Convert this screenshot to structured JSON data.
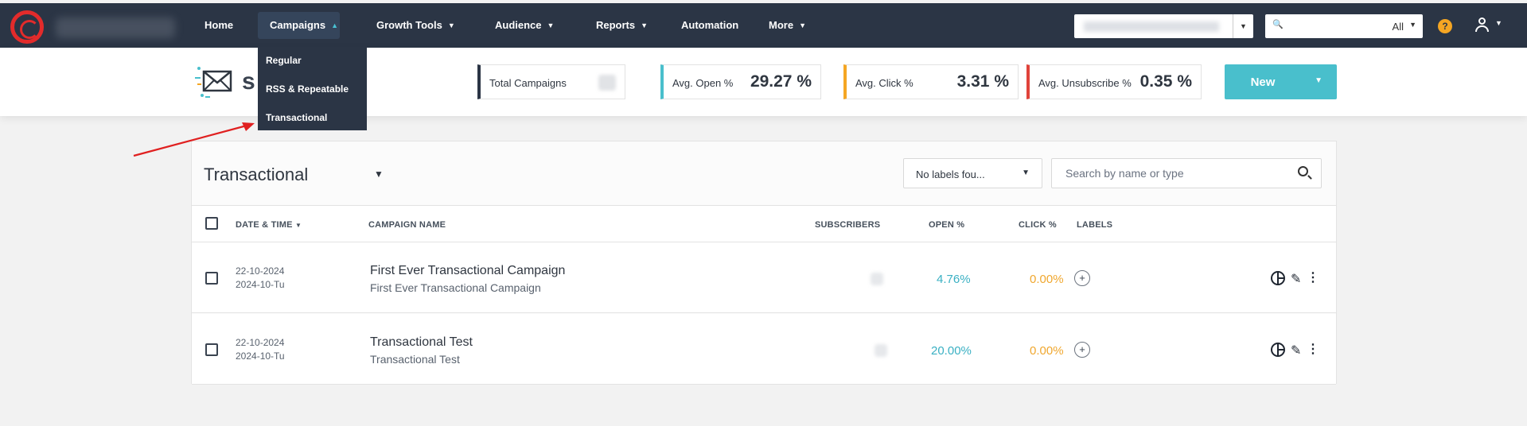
{
  "nav": {
    "items": [
      {
        "label": "Home"
      },
      {
        "label": "Campaigns"
      },
      {
        "label": "Growth Tools"
      },
      {
        "label": "Audience"
      },
      {
        "label": "Reports"
      },
      {
        "label": "Automation"
      },
      {
        "label": "More"
      }
    ],
    "active": "Campaigns",
    "search_scope": "All",
    "help_label": "?"
  },
  "dropdown": {
    "items": [
      {
        "label": "Regular"
      },
      {
        "label": "RSS & Repeatable"
      },
      {
        "label": "Transactional"
      }
    ]
  },
  "header": {
    "title_visible_fragment": "s",
    "stats": [
      {
        "label": "Total Campaigns",
        "value": ""
      },
      {
        "label": "Avg. Open %",
        "value": "29.27 %",
        "color": "#49bfcc"
      },
      {
        "label": "Avg. Click %",
        "value": "3.31 %",
        "color": "#f5a623"
      },
      {
        "label": "Avg. Unsubscribe %",
        "value": "0.35 %",
        "color": "#e0433a"
      }
    ],
    "new_button": "New"
  },
  "panel": {
    "title": "Transactional",
    "labels_filter": "No labels fou...",
    "search_placeholder": "Search by name or type",
    "columns": {
      "date": "DATE & TIME",
      "name": "CAMPAIGN NAME",
      "subscribers": "SUBSCRIBERS",
      "open": "OPEN %",
      "click": "CLICK %",
      "labels": "LABELS"
    },
    "rows": [
      {
        "date": "22-10-2024",
        "date2": "2024-10-Tu",
        "name": "First Ever Transactional Campaign",
        "subtitle": "First Ever Transactional Campaign",
        "open": "4.76%",
        "click": "0.00%",
        "add_label": "+"
      },
      {
        "date": "22-10-2024",
        "date2": "2024-10-Tu",
        "name": "Transactional Test",
        "subtitle": "Transactional Test",
        "open": "20.00%",
        "click": "0.00%",
        "add_label": "+"
      }
    ]
  },
  "colors": {
    "nav_bg": "#2b3545",
    "accent": "#49bfcc",
    "open": "#3ab0c3",
    "click": "#f0a72e",
    "annotation_arrow": "#e02020"
  }
}
